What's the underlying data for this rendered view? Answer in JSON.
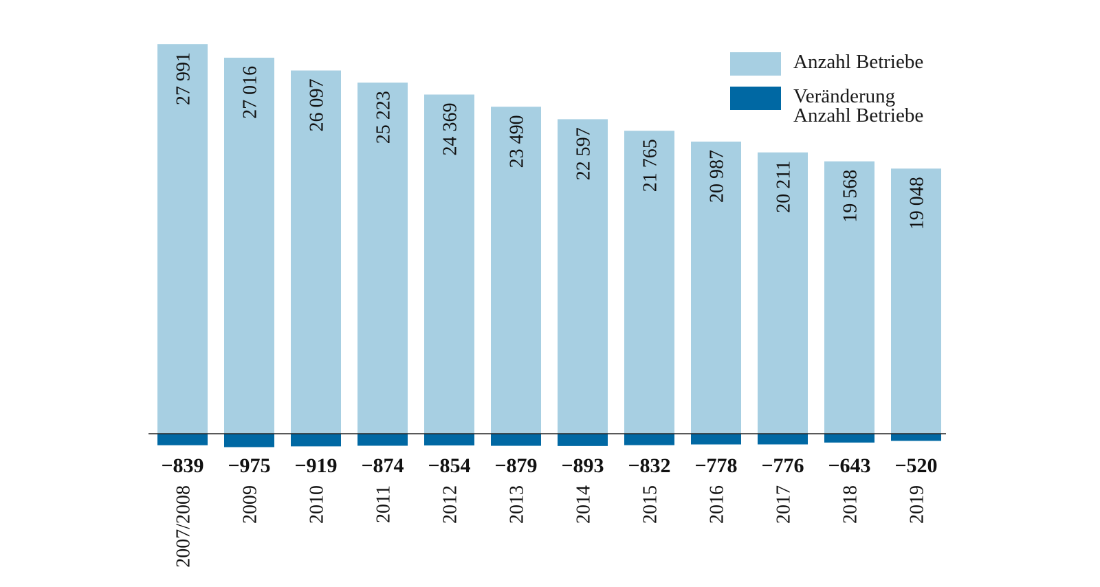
{
  "chart_data": {
    "type": "bar",
    "categories": [
      "2007/2008",
      "2009",
      "2010",
      "2011",
      "2012",
      "2013",
      "2014",
      "2015",
      "2016",
      "2017",
      "2018",
      "2019"
    ],
    "series": [
      {
        "name": "Anzahl Betriebe",
        "color": "#a7cfe2",
        "values": [
          27991,
          27016,
          26097,
          25223,
          24369,
          23490,
          22597,
          21765,
          20987,
          20211,
          19568,
          19048
        ],
        "labels": [
          "27 991",
          "27 016",
          "26 097",
          "25 223",
          "24 369",
          "23 490",
          "22 597",
          "21 765",
          "20 987",
          "20 211",
          "19 568",
          "19 048"
        ]
      },
      {
        "name": "Veränderung Anzahl Betriebe",
        "color": "#0068a3",
        "values": [
          -839,
          -975,
          -919,
          -874,
          -854,
          -879,
          -893,
          -832,
          -778,
          -776,
          -643,
          -520
        ],
        "labels": [
          "−839",
          "−975",
          "−919",
          "−874",
          "−854",
          "−879",
          "−893",
          "−832",
          "−778",
          "−776",
          "−643",
          "−520"
        ]
      }
    ],
    "title": "",
    "xlabel": "",
    "ylabel": "",
    "legend_position": "top-right",
    "grid": false
  },
  "legend": [
    {
      "label": "Anzahl Betriebe",
      "color": "#a7cfe2"
    },
    {
      "label": "Veränderung\nAnzahl Betriebe",
      "color": "#0068a3"
    }
  ]
}
